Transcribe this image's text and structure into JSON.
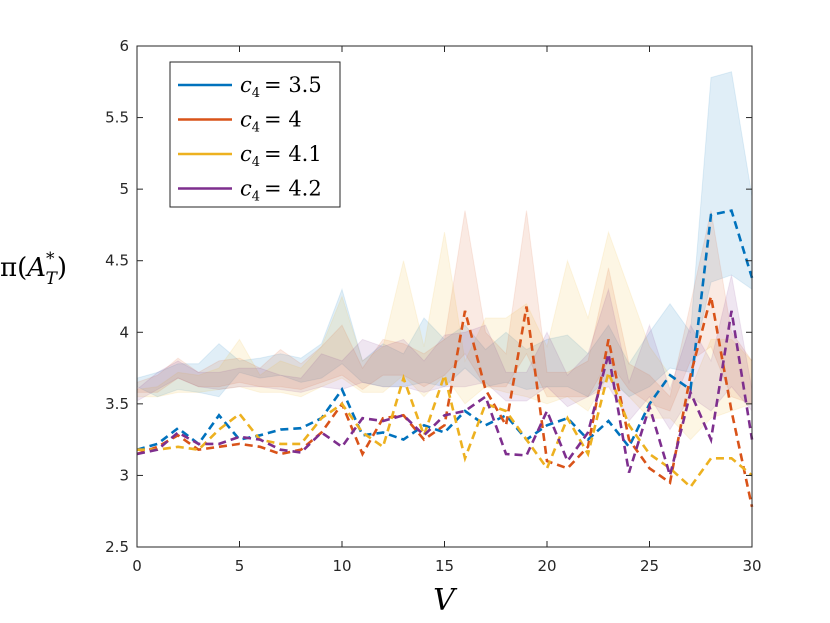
{
  "chart_data": {
    "type": "line",
    "xlabel": "V",
    "ylabel": "π(A*T)",
    "ylabel_parts": {
      "pre": "π(",
      "letter": "A",
      "sup": "*",
      "sub": "T",
      "post": ")"
    },
    "xlim": [
      0,
      30
    ],
    "ylim": [
      2.5,
      6
    ],
    "xticks": [
      "0",
      "5",
      "10",
      "15",
      "20",
      "25",
      "30"
    ],
    "yticks": [
      "2.5",
      "3",
      "3.5",
      "4",
      "4.5",
      "5",
      "5.5",
      "6"
    ],
    "grid": false,
    "legend_position": "top-left",
    "x": [
      0,
      1,
      2,
      3,
      4,
      5,
      6,
      7,
      8,
      9,
      10,
      11,
      12,
      13,
      14,
      15,
      16,
      17,
      18,
      19,
      20,
      21,
      22,
      23,
      24,
      25,
      26,
      27,
      28,
      29,
      30
    ],
    "series": [
      {
        "name": "c4 = 3.5",
        "label_parts": {
          "var": "c",
          "sub": "4",
          "value": "= 3.5"
        },
        "color": "#0072BD",
        "values": [
          3.18,
          3.22,
          3.33,
          3.22,
          3.42,
          3.25,
          3.28,
          3.32,
          3.33,
          3.4,
          3.6,
          3.28,
          3.3,
          3.25,
          3.35,
          3.3,
          3.45,
          3.35,
          3.42,
          3.25,
          3.35,
          3.4,
          3.25,
          3.38,
          3.2,
          3.5,
          3.7,
          3.6,
          4.82,
          4.85,
          4.38
        ],
        "band_low": [
          3.62,
          3.55,
          3.6,
          3.58,
          3.55,
          3.72,
          3.68,
          3.7,
          3.65,
          3.68,
          3.78,
          3.65,
          3.62,
          3.62,
          3.65,
          3.62,
          3.75,
          3.62,
          3.65,
          3.6,
          3.62,
          3.62,
          3.55,
          3.68,
          3.55,
          3.62,
          3.75,
          3.72,
          4.35,
          4.4,
          4.3
        ],
        "band_high": [
          3.68,
          3.72,
          3.78,
          3.78,
          3.92,
          3.8,
          3.82,
          3.85,
          3.82,
          3.92,
          4.3,
          3.8,
          3.92,
          3.85,
          4.1,
          3.95,
          4.05,
          3.88,
          4.0,
          3.88,
          3.95,
          3.98,
          3.85,
          4.05,
          3.78,
          4.0,
          4.2,
          4.0,
          5.78,
          5.82,
          4.95
        ]
      },
      {
        "name": "c4 = 4",
        "label_parts": {
          "var": "c",
          "sub": "4",
          "value": "= 4"
        },
        "color": "#D95319",
        "values": [
          3.15,
          3.2,
          3.28,
          3.18,
          3.2,
          3.22,
          3.2,
          3.15,
          3.18,
          3.3,
          3.5,
          3.15,
          3.4,
          3.42,
          3.25,
          3.35,
          4.15,
          3.6,
          3.35,
          4.18,
          3.1,
          3.05,
          3.2,
          3.95,
          3.25,
          3.05,
          2.95,
          3.7,
          4.25,
          3.45,
          2.78
        ],
        "band_low": [
          3.58,
          3.58,
          3.68,
          3.62,
          3.62,
          3.65,
          3.62,
          3.62,
          3.6,
          3.65,
          3.7,
          3.6,
          3.7,
          3.7,
          3.62,
          3.7,
          3.85,
          3.62,
          3.62,
          3.85,
          3.55,
          3.55,
          3.55,
          3.8,
          3.6,
          3.5,
          3.45,
          3.8,
          3.9,
          3.55,
          3.5
        ],
        "band_high": [
          3.65,
          3.7,
          3.82,
          3.72,
          3.8,
          3.82,
          3.75,
          3.88,
          3.78,
          3.9,
          4.05,
          3.75,
          3.95,
          3.92,
          3.85,
          3.95,
          4.85,
          4.0,
          3.85,
          4.85,
          3.72,
          3.72,
          3.8,
          4.45,
          3.78,
          3.7,
          3.55,
          4.2,
          4.85,
          4.0,
          3.8
        ]
      },
      {
        "name": "c4 = 4.1",
        "label_parts": {
          "var": "c",
          "sub": "4",
          "value": "= 4.1"
        },
        "color": "#EDB120",
        "values": [
          3.18,
          3.18,
          3.2,
          3.18,
          3.32,
          3.43,
          3.25,
          3.22,
          3.22,
          3.4,
          3.5,
          3.3,
          3.2,
          3.68,
          3.28,
          3.7,
          3.12,
          3.5,
          3.45,
          3.25,
          3.05,
          3.4,
          3.15,
          3.72,
          3.35,
          3.15,
          3.05,
          2.92,
          3.12,
          3.12,
          3.0
        ],
        "band_low": [
          3.55,
          3.55,
          3.58,
          3.58,
          3.6,
          3.62,
          3.58,
          3.58,
          3.55,
          3.62,
          3.68,
          3.58,
          3.58,
          3.7,
          3.55,
          3.7,
          3.5,
          3.62,
          3.58,
          3.55,
          3.5,
          3.55,
          3.45,
          3.7,
          3.55,
          3.4,
          3.4,
          3.25,
          3.4,
          3.45,
          3.5
        ],
        "band_high": [
          3.6,
          3.62,
          3.72,
          3.7,
          3.75,
          3.95,
          3.7,
          3.8,
          3.75,
          3.9,
          4.25,
          3.8,
          3.9,
          4.5,
          3.9,
          4.7,
          3.8,
          4.1,
          4.1,
          4.2,
          3.9,
          4.5,
          4.1,
          4.7,
          4.3,
          3.9,
          3.7,
          3.6,
          3.95,
          3.95,
          3.8
        ]
      },
      {
        "name": "c4 = 4.2",
        "label_parts": {
          "var": "c",
          "sub": "4",
          "value": "= 4.2"
        },
        "color": "#7E2F8E",
        "values": [
          3.15,
          3.18,
          3.3,
          3.22,
          3.22,
          3.27,
          3.25,
          3.18,
          3.16,
          3.3,
          3.2,
          3.4,
          3.38,
          3.42,
          3.28,
          3.42,
          3.45,
          3.55,
          3.15,
          3.14,
          3.45,
          3.1,
          3.3,
          3.85,
          3.02,
          3.48,
          3.0,
          3.58,
          3.25,
          4.15,
          3.25
        ],
        "band_low": [
          3.52,
          3.6,
          3.68,
          3.62,
          3.6,
          3.62,
          3.62,
          3.6,
          3.58,
          3.62,
          3.6,
          3.65,
          3.62,
          3.62,
          3.58,
          3.62,
          3.62,
          3.65,
          3.52,
          3.52,
          3.62,
          3.48,
          3.55,
          3.62,
          3.38,
          3.55,
          3.32,
          3.55,
          3.45,
          3.62,
          3.45
        ],
        "band_high": [
          3.6,
          3.72,
          3.8,
          3.72,
          3.72,
          3.75,
          3.75,
          3.7,
          3.68,
          3.85,
          3.8,
          3.95,
          3.9,
          3.95,
          3.8,
          3.98,
          4.0,
          4.05,
          3.72,
          3.72,
          4.0,
          3.7,
          3.85,
          4.3,
          3.65,
          4.05,
          3.6,
          4.05,
          3.8,
          4.4,
          3.6
        ]
      }
    ]
  }
}
